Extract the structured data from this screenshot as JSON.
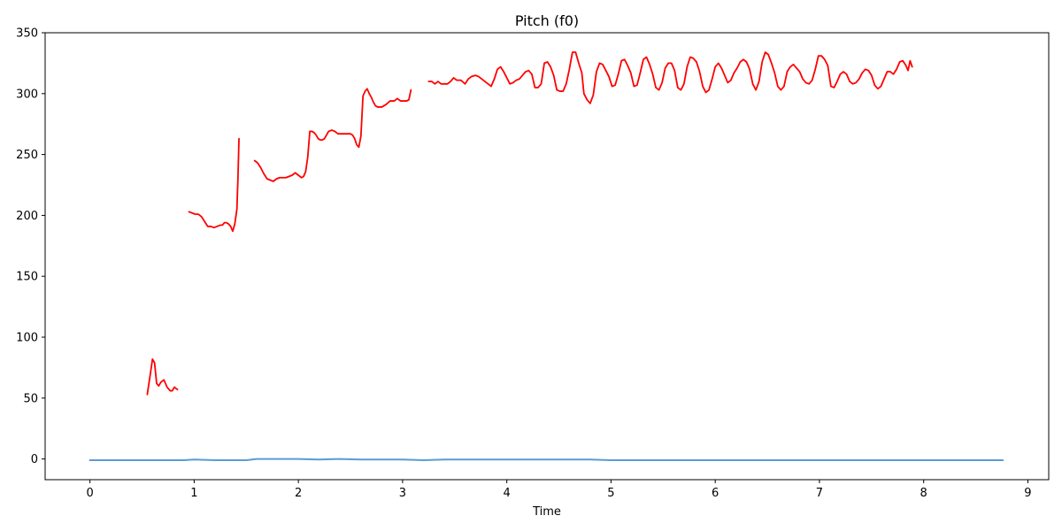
{
  "chart_data": {
    "type": "line",
    "title": "Pitch (f0)",
    "xlabel": "Time",
    "ylabel": "",
    "xlim": [
      -0.43,
      9.2
    ],
    "ylim": [
      -17,
      350
    ],
    "xticks": [
      0,
      1,
      2,
      3,
      4,
      5,
      6,
      7,
      8,
      9
    ],
    "yticks": [
      0,
      50,
      100,
      150,
      200,
      250,
      300,
      350
    ],
    "grid": false,
    "legend": "none",
    "series": [
      {
        "color": "#ff0000",
        "segments": [
          [
            [
              0.55,
              53
            ],
            [
              0.58,
              70
            ],
            [
              0.6,
              82
            ],
            [
              0.62,
              79
            ],
            [
              0.64,
              62
            ],
            [
              0.66,
              60
            ],
            [
              0.68,
              63
            ],
            [
              0.71,
              65
            ],
            [
              0.74,
              59
            ],
            [
              0.77,
              56
            ],
            [
              0.79,
              56
            ],
            [
              0.81,
              59
            ],
            [
              0.84,
              57
            ]
          ],
          [
            [
              0.95,
              203
            ],
            [
              0.98,
              202
            ],
            [
              1.01,
              201
            ],
            [
              1.04,
              201
            ],
            [
              1.07,
              199
            ],
            [
              1.1,
              195
            ],
            [
              1.13,
              191
            ],
            [
              1.16,
              191
            ],
            [
              1.19,
              190
            ],
            [
              1.22,
              191
            ],
            [
              1.25,
              192
            ],
            [
              1.27,
              192
            ],
            [
              1.29,
              194
            ],
            [
              1.31,
              194
            ],
            [
              1.33,
              193
            ],
            [
              1.35,
              191
            ],
            [
              1.37,
              187
            ],
            [
              1.39,
              193
            ],
            [
              1.41,
              205
            ],
            [
              1.42,
              230
            ],
            [
              1.43,
              263
            ]
          ],
          [
            [
              1.58,
              245
            ],
            [
              1.61,
              243
            ],
            [
              1.64,
              239
            ],
            [
              1.67,
              234
            ],
            [
              1.7,
              230
            ],
            [
              1.73,
              229
            ],
            [
              1.76,
              228
            ],
            [
              1.79,
              230
            ],
            [
              1.82,
              231
            ],
            [
              1.85,
              231
            ],
            [
              1.88,
              231
            ],
            [
              1.91,
              232
            ],
            [
              1.94,
              233
            ],
            [
              1.97,
              235
            ],
            [
              2.0,
              233
            ],
            [
              2.03,
              231
            ],
            [
              2.05,
              232
            ],
            [
              2.07,
              236
            ],
            [
              2.09,
              248
            ],
            [
              2.11,
              269
            ],
            [
              2.13,
              269
            ],
            [
              2.15,
              268
            ],
            [
              2.17,
              266
            ],
            [
              2.19,
              263
            ],
            [
              2.21,
              262
            ],
            [
              2.23,
              262
            ],
            [
              2.25,
              263
            ],
            [
              2.27,
              266
            ],
            [
              2.29,
              269
            ],
            [
              2.32,
              270
            ],
            [
              2.35,
              269
            ],
            [
              2.38,
              267
            ],
            [
              2.41,
              267
            ],
            [
              2.44,
              267
            ],
            [
              2.47,
              267
            ],
            [
              2.5,
              267
            ],
            [
              2.52,
              266
            ],
            [
              2.54,
              263
            ],
            [
              2.56,
              258
            ],
            [
              2.58,
              256
            ],
            [
              2.6,
              265
            ],
            [
              2.62,
              298
            ],
            [
              2.64,
              302
            ],
            [
              2.66,
              304
            ],
            [
              2.68,
              300
            ],
            [
              2.7,
              297
            ],
            [
              2.72,
              293
            ],
            [
              2.74,
              290
            ],
            [
              2.76,
              289
            ],
            [
              2.8,
              289
            ],
            [
              2.84,
              291
            ],
            [
              2.88,
              294
            ],
            [
              2.92,
              294
            ],
            [
              2.95,
              296
            ],
            [
              2.98,
              294
            ],
            [
              3.01,
              294
            ],
            [
              3.04,
              294
            ],
            [
              3.06,
              295
            ],
            [
              3.08,
              303
            ]
          ],
          [
            [
              3.25,
              310
            ],
            [
              3.28,
              310
            ],
            [
              3.31,
              308
            ],
            [
              3.34,
              310
            ],
            [
              3.37,
              308
            ],
            [
              3.4,
              308
            ],
            [
              3.43,
              308
            ],
            [
              3.46,
              310
            ],
            [
              3.49,
              313
            ],
            [
              3.52,
              311
            ],
            [
              3.56,
              311
            ],
            [
              3.6,
              308
            ],
            [
              3.63,
              312
            ],
            [
              3.66,
              314
            ],
            [
              3.7,
              315
            ],
            [
              3.73,
              314
            ],
            [
              3.76,
              312
            ],
            [
              3.79,
              310
            ],
            [
              3.82,
              308
            ],
            [
              3.85,
              306
            ],
            [
              3.88,
              312
            ],
            [
              3.91,
              320
            ],
            [
              3.94,
              322
            ],
            [
              3.97,
              318
            ],
            [
              4.0,
              313
            ],
            [
              4.03,
              308
            ],
            [
              4.06,
              309
            ],
            [
              4.09,
              311
            ],
            [
              4.12,
              312
            ],
            [
              4.15,
              315
            ],
            [
              4.18,
              318
            ],
            [
              4.21,
              319
            ],
            [
              4.24,
              316
            ],
            [
              4.27,
              305
            ],
            [
              4.3,
              305
            ],
            [
              4.33,
              308
            ],
            [
              4.36,
              325
            ],
            [
              4.39,
              326
            ],
            [
              4.42,
              322
            ],
            [
              4.45,
              315
            ],
            [
              4.48,
              303
            ],
            [
              4.51,
              302
            ],
            [
              4.54,
              302
            ],
            [
              4.57,
              308
            ],
            [
              4.6,
              320
            ],
            [
              4.63,
              334
            ],
            [
              4.66,
              334
            ],
            [
              4.69,
              325
            ],
            [
              4.72,
              317
            ],
            [
              4.74,
              300
            ],
            [
              4.77,
              295
            ],
            [
              4.8,
              292
            ],
            [
              4.83,
              299
            ],
            [
              4.86,
              318
            ],
            [
              4.89,
              325
            ],
            [
              4.92,
              324
            ],
            [
              4.95,
              319
            ],
            [
              4.98,
              314
            ],
            [
              5.01,
              306
            ],
            [
              5.04,
              307
            ],
            [
              5.07,
              316
            ],
            [
              5.1,
              327
            ],
            [
              5.13,
              328
            ],
            [
              5.16,
              323
            ],
            [
              5.19,
              317
            ],
            [
              5.22,
              306
            ],
            [
              5.25,
              307
            ],
            [
              5.28,
              317
            ],
            [
              5.31,
              328
            ],
            [
              5.34,
              330
            ],
            [
              5.37,
              324
            ],
            [
              5.4,
              316
            ],
            [
              5.43,
              305
            ],
            [
              5.46,
              303
            ],
            [
              5.49,
              309
            ],
            [
              5.52,
              321
            ],
            [
              5.55,
              325
            ],
            [
              5.58,
              325
            ],
            [
              5.61,
              319
            ],
            [
              5.64,
              305
            ],
            [
              5.67,
              303
            ],
            [
              5.7,
              308
            ],
            [
              5.73,
              322
            ],
            [
              5.76,
              330
            ],
            [
              5.79,
              329
            ],
            [
              5.82,
              326
            ],
            [
              5.85,
              318
            ],
            [
              5.88,
              306
            ],
            [
              5.91,
              301
            ],
            [
              5.94,
              303
            ],
            [
              5.97,
              312
            ],
            [
              6.0,
              322
            ],
            [
              6.03,
              325
            ],
            [
              6.06,
              321
            ],
            [
              6.09,
              315
            ],
            [
              6.12,
              309
            ],
            [
              6.15,
              311
            ],
            [
              6.18,
              317
            ],
            [
              6.21,
              321
            ],
            [
              6.24,
              326
            ],
            [
              6.27,
              328
            ],
            [
              6.3,
              326
            ],
            [
              6.33,
              320
            ],
            [
              6.36,
              308
            ],
            [
              6.39,
              303
            ],
            [
              6.42,
              310
            ],
            [
              6.45,
              326
            ],
            [
              6.48,
              334
            ],
            [
              6.51,
              332
            ],
            [
              6.54,
              325
            ],
            [
              6.57,
              317
            ],
            [
              6.6,
              306
            ],
            [
              6.63,
              303
            ],
            [
              6.66,
              306
            ],
            [
              6.69,
              318
            ],
            [
              6.72,
              322
            ],
            [
              6.75,
              324
            ],
            [
              6.78,
              321
            ],
            [
              6.81,
              318
            ],
            [
              6.84,
              312
            ],
            [
              6.87,
              309
            ],
            [
              6.9,
              308
            ],
            [
              6.93,
              311
            ],
            [
              6.96,
              320
            ],
            [
              6.99,
              331
            ],
            [
              7.02,
              331
            ],
            [
              7.05,
              328
            ],
            [
              7.08,
              323
            ],
            [
              7.11,
              306
            ],
            [
              7.14,
              305
            ],
            [
              7.17,
              310
            ],
            [
              7.2,
              316
            ],
            [
              7.23,
              318
            ],
            [
              7.26,
              316
            ],
            [
              7.29,
              310
            ],
            [
              7.32,
              308
            ],
            [
              7.35,
              309
            ],
            [
              7.38,
              312
            ],
            [
              7.41,
              317
            ],
            [
              7.44,
              320
            ],
            [
              7.47,
              319
            ],
            [
              7.5,
              315
            ],
            [
              7.53,
              307
            ],
            [
              7.56,
              304
            ],
            [
              7.59,
              306
            ],
            [
              7.62,
              312
            ],
            [
              7.65,
              318
            ],
            [
              7.68,
              318
            ],
            [
              7.71,
              316
            ],
            [
              7.74,
              320
            ],
            [
              7.77,
              326
            ],
            [
              7.8,
              327
            ],
            [
              7.83,
              323
            ],
            [
              7.85,
              319
            ],
            [
              7.87,
              327
            ],
            [
              7.89,
              322
            ]
          ]
        ]
      },
      {
        "color": "#5b9bd5",
        "segments": [
          [
            [
              0.0,
              -1
            ],
            [
              0.3,
              -1
            ],
            [
              0.6,
              -1
            ],
            [
              0.9,
              -1
            ],
            [
              1.0,
              -0.5
            ],
            [
              1.2,
              -1
            ],
            [
              1.5,
              -1
            ],
            [
              1.6,
              0
            ],
            [
              1.8,
              0
            ],
            [
              2.0,
              0
            ],
            [
              2.2,
              -0.5
            ],
            [
              2.4,
              0
            ],
            [
              2.6,
              -0.5
            ],
            [
              2.8,
              -0.5
            ],
            [
              3.0,
              -0.5
            ],
            [
              3.2,
              -1
            ],
            [
              3.4,
              -0.5
            ],
            [
              3.6,
              -0.5
            ],
            [
              3.8,
              -0.5
            ],
            [
              4.0,
              -0.5
            ],
            [
              4.2,
              -0.5
            ],
            [
              4.4,
              -0.5
            ],
            [
              4.6,
              -0.5
            ],
            [
              4.8,
              -0.5
            ],
            [
              5.0,
              -1
            ],
            [
              5.5,
              -1
            ],
            [
              6.0,
              -1
            ],
            [
              6.5,
              -1
            ],
            [
              7.0,
              -1
            ],
            [
              7.5,
              -1
            ],
            [
              8.0,
              -1
            ],
            [
              8.5,
              -1
            ],
            [
              8.76,
              -1
            ]
          ]
        ]
      }
    ]
  }
}
